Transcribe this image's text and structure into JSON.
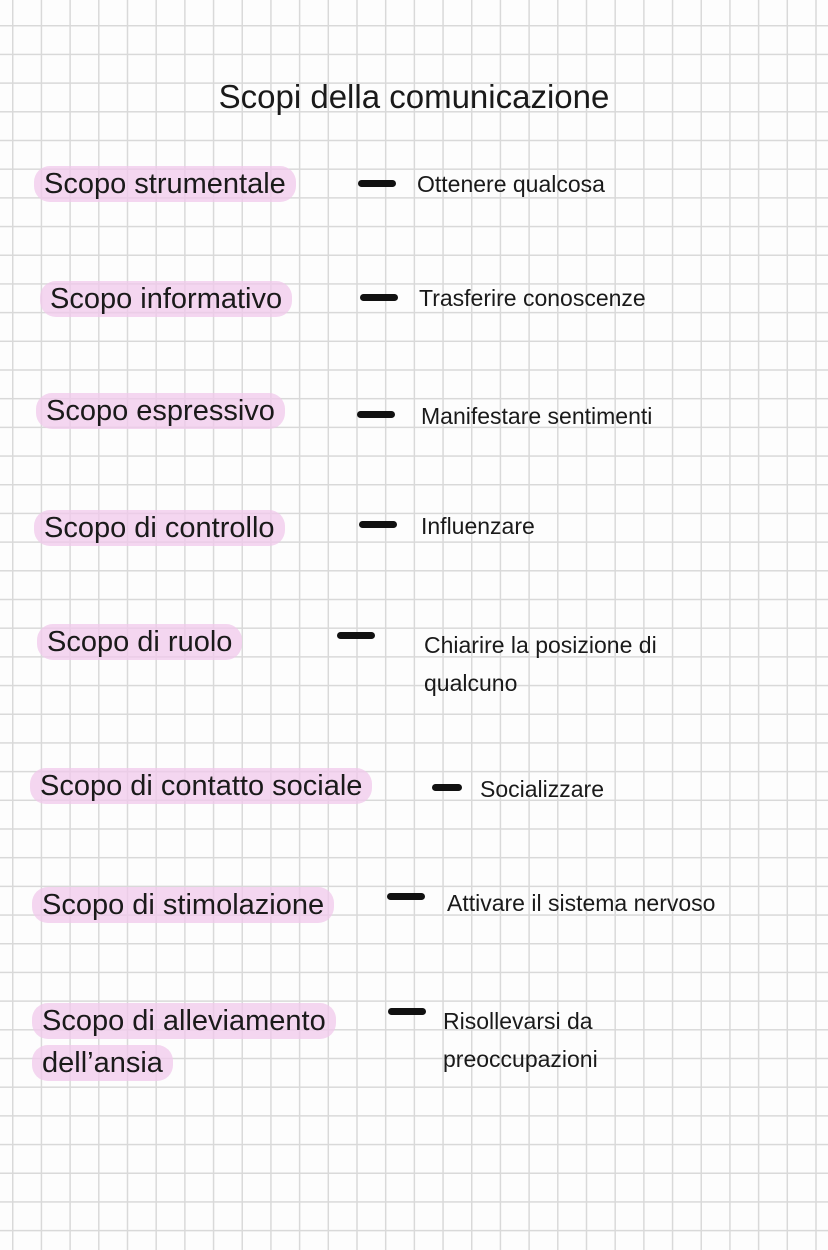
{
  "title": "Scopi della comunicazione",
  "highlight_color": "#f0c8eb",
  "items": [
    {
      "term": "Scopo strumentale",
      "description": "Ottenere qualcosa"
    },
    {
      "term": "Scopo informativo",
      "description": "Trasferire conoscenze"
    },
    {
      "term": "Scopo espressivo",
      "description": "Manifestare sentimenti"
    },
    {
      "term": "Scopo di controllo",
      "description": "Influenzare"
    },
    {
      "term": "Scopo di ruolo",
      "description": "Chiarire la posizione di",
      "description_2": "qualcuno"
    },
    {
      "term": "Scopo di contatto sociale",
      "description": "Socializzare"
    },
    {
      "term": "Scopo di stimolazione",
      "description": "Attivare il sistema nervoso"
    },
    {
      "term": "Scopo di alleviamento",
      "term_2": "dell’ansia",
      "description": "Risollevarsi da",
      "description_2": "preoccupazioni"
    }
  ]
}
